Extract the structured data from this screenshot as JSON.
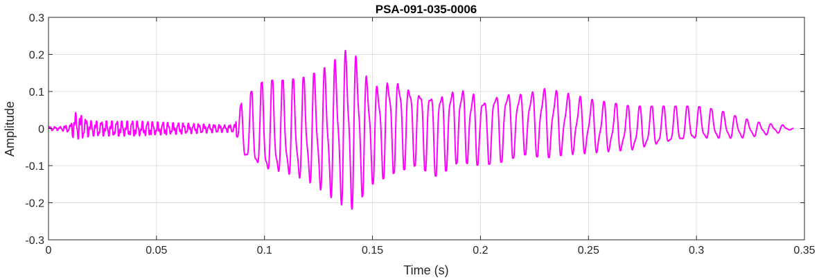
{
  "chart_data": {
    "type": "line",
    "title": "PSA-091-035-0006",
    "xlabel": "Time (s)",
    "ylabel": "Amplitude",
    "xlim": [
      0,
      0.35
    ],
    "ylim": [
      -0.3,
      0.3
    ],
    "xticks": [
      0,
      0.05,
      0.1,
      0.15,
      0.2,
      0.25,
      0.3,
      0.35
    ],
    "xtick_labels": [
      "0",
      "0.05",
      "0.1",
      "0.15",
      "0.2",
      "0.25",
      "0.3",
      "0.35"
    ],
    "yticks": [
      -0.3,
      -0.2,
      -0.1,
      0,
      0.1,
      0.2,
      0.3
    ],
    "ytick_labels": [
      "-0.3",
      "-0.2",
      "-0.1",
      "0",
      "0.1",
      "0.2",
      "0.3"
    ],
    "grid": true,
    "line_color": "#ff00ff",
    "series": [
      {
        "x": [
          0,
          0.005,
          0.01,
          0.012,
          0.02,
          0.04,
          0.06,
          0.08,
          0.086,
          0.09,
          0.1,
          0.11,
          0.12,
          0.13,
          0.14,
          0.15,
          0.16,
          0.17,
          0.18,
          0.19,
          0.2,
          0.21,
          0.22,
          0.23,
          0.24,
          0.25,
          0.26,
          0.27,
          0.28,
          0.29,
          0.3,
          0.31,
          0.32,
          0.33,
          0.34,
          0.345
        ],
        "y_upper": [
          0.005,
          0.005,
          0.01,
          0.045,
          0.02,
          0.02,
          0.015,
          0.01,
          0.01,
          0.08,
          0.13,
          0.13,
          0.14,
          0.17,
          0.235,
          0.13,
          0.16,
          0.13,
          0.12,
          0.13,
          0.1,
          0.12,
          0.11,
          0.12,
          0.1,
          0.08,
          0.07,
          0.06,
          0.06,
          0.06,
          0.06,
          0.05,
          0.03,
          0.015,
          0.01,
          0.0
        ],
        "y_lower": [
          -0.005,
          -0.005,
          -0.01,
          -0.03,
          -0.02,
          -0.02,
          -0.015,
          -0.01,
          -0.01,
          -0.1,
          -0.15,
          -0.15,
          -0.16,
          -0.19,
          -0.22,
          -0.15,
          -0.12,
          -0.1,
          -0.13,
          -0.09,
          -0.1,
          -0.09,
          -0.07,
          -0.08,
          -0.07,
          -0.07,
          -0.07,
          -0.07,
          -0.06,
          -0.05,
          -0.04,
          -0.035,
          -0.03,
          -0.02,
          -0.01,
          0.0
        ]
      }
    ]
  }
}
